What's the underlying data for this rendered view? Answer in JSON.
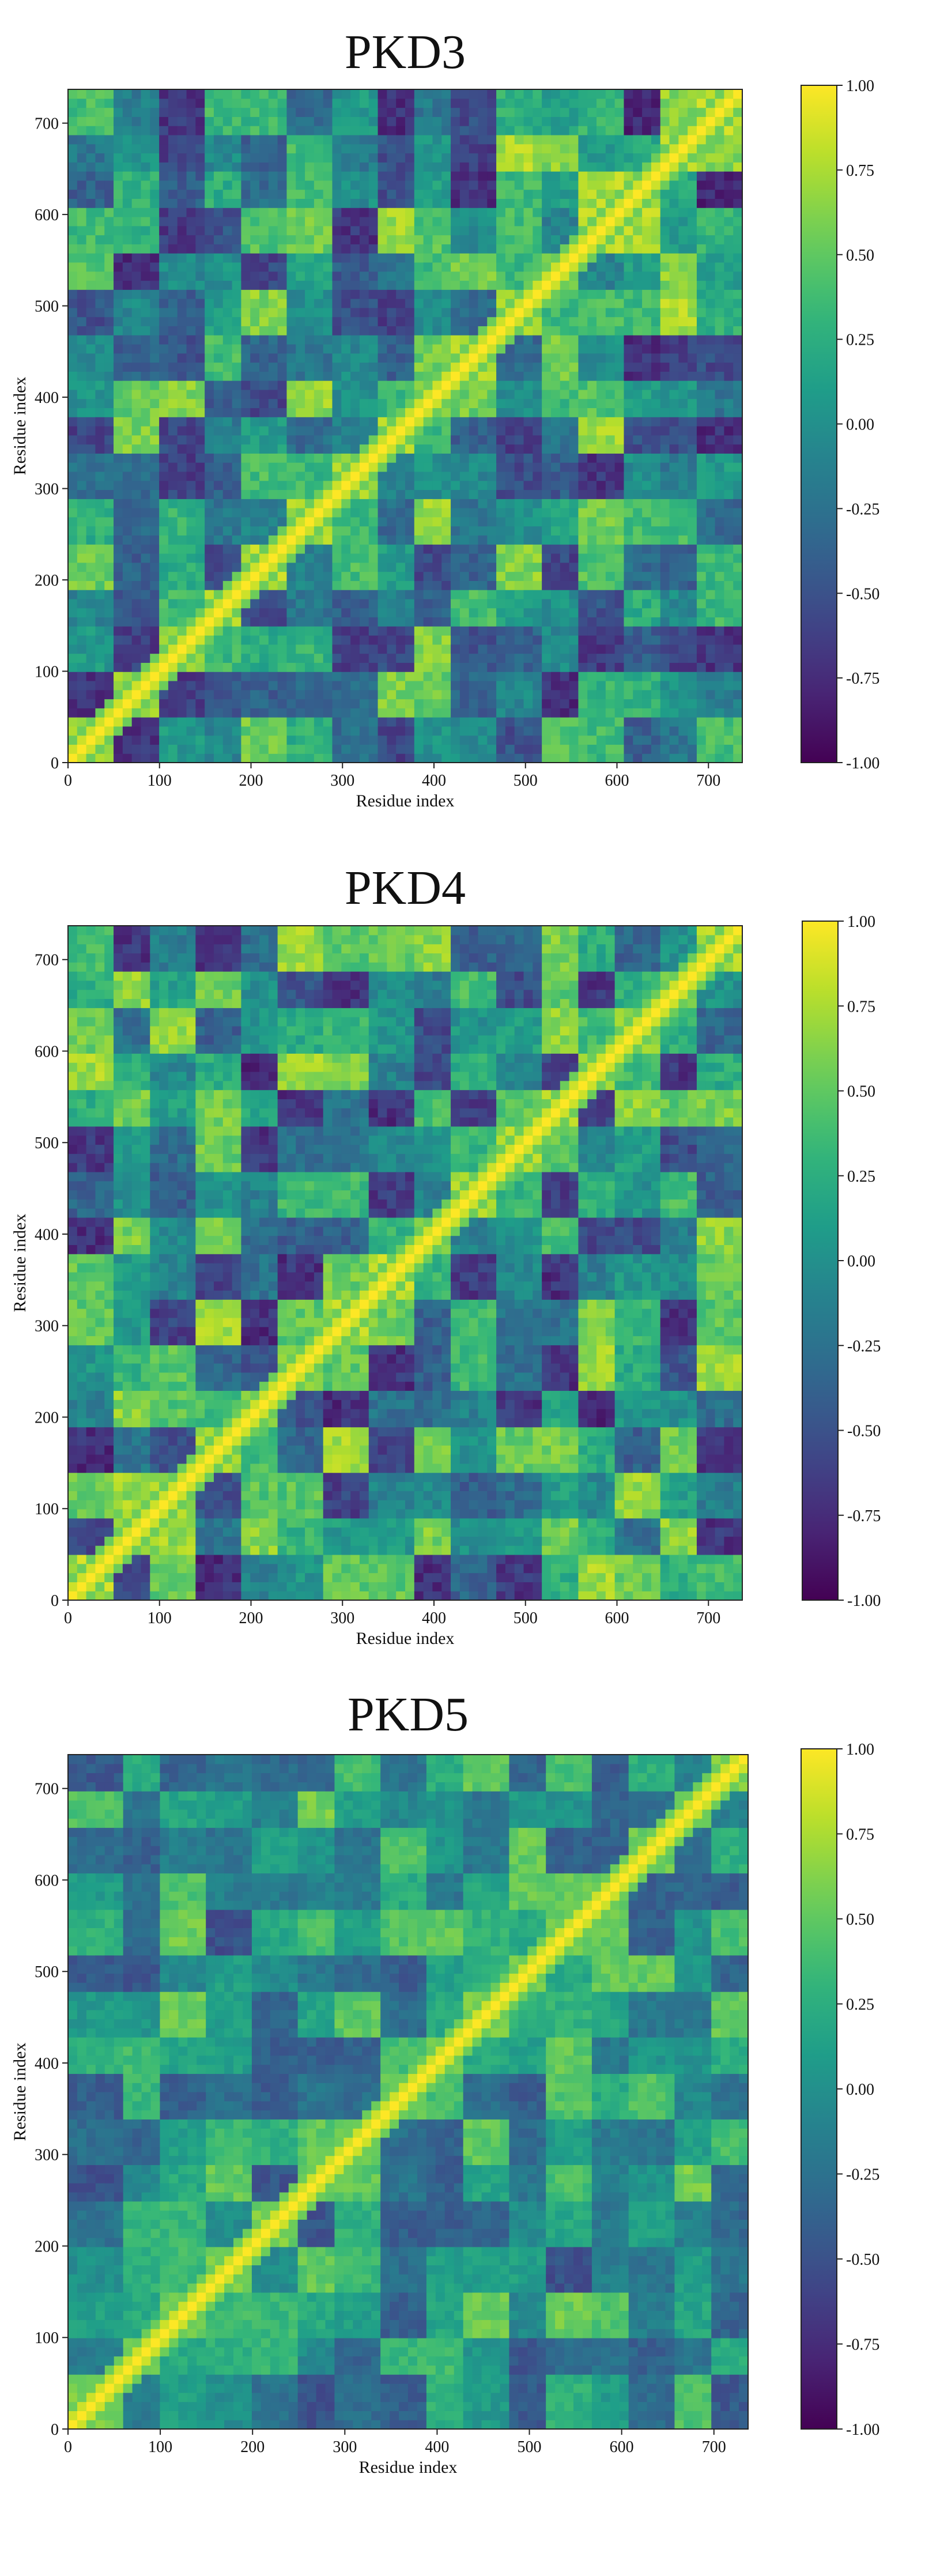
{
  "figure": {
    "background": "#ffffff"
  },
  "chart_data": [
    {
      "type": "heatmap",
      "title": "PKD3",
      "xlabel": "Residue index",
      "ylabel": "Residue index",
      "xlim": [
        0,
        737
      ],
      "ylim": [
        0,
        737
      ],
      "xticks": [
        0,
        100,
        200,
        300,
        400,
        500,
        600,
        700
      ],
      "yticks": [
        0,
        100,
        200,
        300,
        400,
        500,
        600,
        700
      ],
      "colorbar": {
        "min": -1.0,
        "max": 1.0,
        "colormap": "viridis",
        "ticks": [
          "1.00",
          "0.75",
          "0.50",
          "0.25",
          "0.00",
          "-0.25",
          "-0.50",
          "-0.75",
          "-1.00"
        ]
      },
      "domain_boundaries": [
        0,
        50,
        95,
        145,
        190,
        240,
        285,
        335,
        380,
        420,
        470,
        515,
        560,
        610,
        650,
        690,
        737
      ],
      "diagonal_value": 1.0,
      "notes": "Dynamic cross-correlation map; block-structured, strong positive diagonal."
    },
    {
      "type": "heatmap",
      "title": "PKD4",
      "xlabel": "Residue index",
      "ylabel": "Residue index",
      "xlim": [
        0,
        737
      ],
      "ylim": [
        0,
        737
      ],
      "xticks": [
        0,
        100,
        200,
        300,
        400,
        500,
        600,
        700
      ],
      "yticks": [
        0,
        100,
        200,
        300,
        400,
        500,
        600,
        700
      ],
      "colorbar": {
        "min": -1.0,
        "max": 1.0,
        "colormap": "viridis",
        "ticks": [
          "1.00",
          "0.75",
          "0.50",
          "0.25",
          "0.00",
          "-0.25",
          "-0.50",
          "-0.75",
          "-1.00"
        ]
      },
      "domain_boundaries": [
        0,
        45,
        90,
        140,
        185,
        230,
        280,
        325,
        375,
        420,
        465,
        520,
        560,
        600,
        645,
        690,
        737
      ],
      "diagonal_value": 1.0,
      "notes": "Strong anti-correlated block near residues 470-520 vs others."
    },
    {
      "type": "heatmap",
      "title": "PKD5",
      "xlabel": "Residue index",
      "ylabel": "Residue index",
      "xlim": [
        0,
        737
      ],
      "ylim": [
        0,
        737
      ],
      "xticks": [
        0,
        100,
        200,
        300,
        400,
        500,
        600,
        700
      ],
      "yticks": [
        0,
        100,
        200,
        300,
        400,
        500,
        600,
        700
      ],
      "colorbar": {
        "min": -1.0,
        "max": 1.0,
        "colormap": "viridis",
        "ticks": [
          "1.00",
          "0.75",
          "0.50",
          "0.25",
          "0.00",
          "-0.25",
          "-0.50",
          "-0.75",
          "-1.00"
        ]
      },
      "domain_boundaries": [
        0,
        55,
        100,
        150,
        195,
        245,
        290,
        340,
        385,
        430,
        475,
        520,
        565,
        610,
        655,
        700,
        737
      ],
      "diagonal_value": 1.0,
      "notes": "Weaker overall correlation; mostly teal/green background."
    }
  ]
}
